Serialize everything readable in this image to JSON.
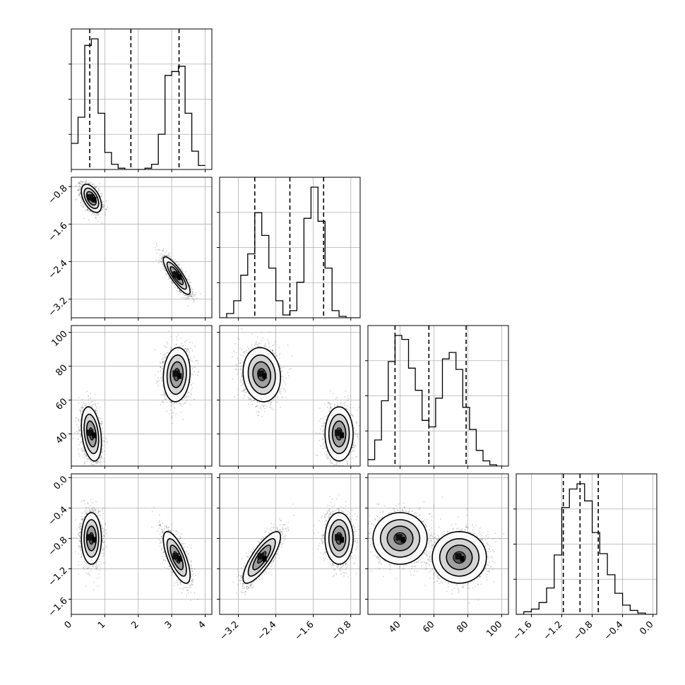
{
  "chart_data": {
    "type": "corner",
    "parameters": [
      {
        "index": 0,
        "range": [
          0,
          4.2
        ],
        "ticks": [
          0,
          1,
          2,
          3,
          4
        ],
        "tick_labels": [
          "0",
          "1",
          "2",
          "3",
          "4"
        ],
        "quantiles": [
          0.55,
          1.78,
          3.22
        ]
      },
      {
        "index": 1,
        "range": [
          -3.6,
          -0.6
        ],
        "ticks": [
          -3.2,
          -2.4,
          -1.6,
          -0.8
        ],
        "tick_labels": [
          "−3.2",
          "−2.4",
          "−1.6",
          "−0.8"
        ],
        "quantiles": [
          -2.85,
          -2.1,
          -1.38
        ]
      },
      {
        "index": 2,
        "range": [
          21,
          104
        ],
        "ticks": [
          40,
          60,
          80,
          100
        ],
        "tick_labels": [
          "40",
          "60",
          "80",
          "100"
        ],
        "quantiles": [
          37,
          57,
          79
        ]
      },
      {
        "index": 3,
        "range": [
          -1.8,
          0.05
        ],
        "ticks": [
          -1.6,
          -1.2,
          -0.8,
          -0.4,
          0.0
        ],
        "tick_labels": [
          "−1.6",
          "−1.2",
          "−0.8",
          "−0.4",
          "0.0"
        ],
        "quantiles": [
          -1.18,
          -0.96,
          -0.72
        ]
      }
    ],
    "y_tick_sets": {
      "1": {
        "ticks": [
          -3.2,
          -2.4,
          -1.6,
          -0.8
        ],
        "tick_labels": [
          "−3.2",
          "−2.4",
          "−1.6",
          "−0.8"
        ]
      },
      "2": {
        "ticks": [
          40,
          60,
          80,
          100
        ],
        "tick_labels": [
          "40",
          "60",
          "80",
          "100"
        ]
      },
      "3": {
        "ticks": [
          -1.6,
          -1.2,
          -0.8,
          -0.4,
          0.0
        ],
        "tick_labels": [
          "−1.6",
          "−1.2",
          "−0.8",
          "−0.4",
          "0.0"
        ]
      }
    },
    "histograms": [
      {
        "param": 0,
        "bins": [
          0.0,
          0.2,
          0.4,
          0.6,
          0.8,
          1.0,
          1.2,
          1.4,
          1.6,
          1.8,
          2.0,
          2.2,
          2.4,
          2.6,
          2.8,
          3.0,
          3.2,
          3.4,
          3.6,
          3.8,
          4.0
        ],
        "counts": [
          0.2,
          0.4,
          0.95,
          1.0,
          0.43,
          0.13,
          0.04,
          0.01,
          0.0,
          0.0,
          0.0,
          0.01,
          0.04,
          0.27,
          0.72,
          0.75,
          0.79,
          0.43,
          0.14,
          0.03
        ]
      },
      {
        "param": 1,
        "bins": [
          -3.6,
          -3.45,
          -3.3,
          -3.15,
          -3.0,
          -2.85,
          -2.7,
          -2.55,
          -2.4,
          -2.25,
          -2.1,
          -1.95,
          -1.8,
          -1.65,
          -1.5,
          -1.35,
          -1.2,
          -1.05,
          -0.9,
          -0.75,
          -0.6
        ],
        "counts": [
          0.0,
          0.03,
          0.12,
          0.3,
          0.45,
          0.74,
          0.58,
          0.35,
          0.12,
          0.02,
          0.05,
          0.25,
          0.7,
          0.92,
          0.68,
          0.35,
          0.05,
          0.01,
          0.0,
          0.0
        ]
      },
      {
        "param": 2,
        "bins": [
          21,
          25,
          29,
          33,
          37,
          41,
          45,
          49,
          53,
          57,
          61,
          65,
          69,
          73,
          77,
          81,
          85,
          89,
          93,
          97,
          101
        ],
        "counts": [
          0.05,
          0.2,
          0.5,
          0.8,
          1.0,
          0.97,
          0.75,
          0.58,
          0.35,
          0.3,
          0.52,
          0.82,
          0.87,
          0.74,
          0.45,
          0.28,
          0.12,
          0.04,
          0.01,
          0.0
        ]
      },
      {
        "param": 3,
        "bins": [
          -1.8,
          -1.7,
          -1.6,
          -1.5,
          -1.4,
          -1.3,
          -1.2,
          -1.1,
          -1.0,
          -0.9,
          -0.8,
          -0.7,
          -0.6,
          -0.5,
          -0.4,
          -0.3,
          -0.2,
          -0.1,
          0.0
        ],
        "counts": [
          0.0,
          0.02,
          0.04,
          0.09,
          0.2,
          0.45,
          0.81,
          0.95,
          0.99,
          0.86,
          0.62,
          0.46,
          0.3,
          0.16,
          0.07,
          0.03,
          0.01,
          0.0
        ]
      }
    ],
    "modes": [
      {
        "weight": 0.5,
        "mean": [
          0.6,
          -1.05,
          40,
          -0.8
        ],
        "sd": [
          0.15,
          0.15,
          8,
          0.17
        ],
        "corr": {
          "0-1": -0.5,
          "0-2": -0.3,
          "1-2": 0.0,
          "0-3": 0.0,
          "1-3": 0.0,
          "2-3": 0.0
        }
      },
      {
        "weight": 0.5,
        "mean": [
          3.15,
          -2.7,
          75,
          -1.05
        ],
        "sd": [
          0.2,
          0.2,
          8,
          0.17
        ],
        "corr": {
          "0-1": -0.85,
          "0-2": 0.1,
          "1-2": -0.1,
          "0-3": -0.7,
          "1-3": 0.8,
          "2-3": 0.0
        }
      }
    ],
    "grid": true,
    "colors": {
      "line": "#000000",
      "scatter": "#555555",
      "grid": "#b0b0b0"
    }
  }
}
